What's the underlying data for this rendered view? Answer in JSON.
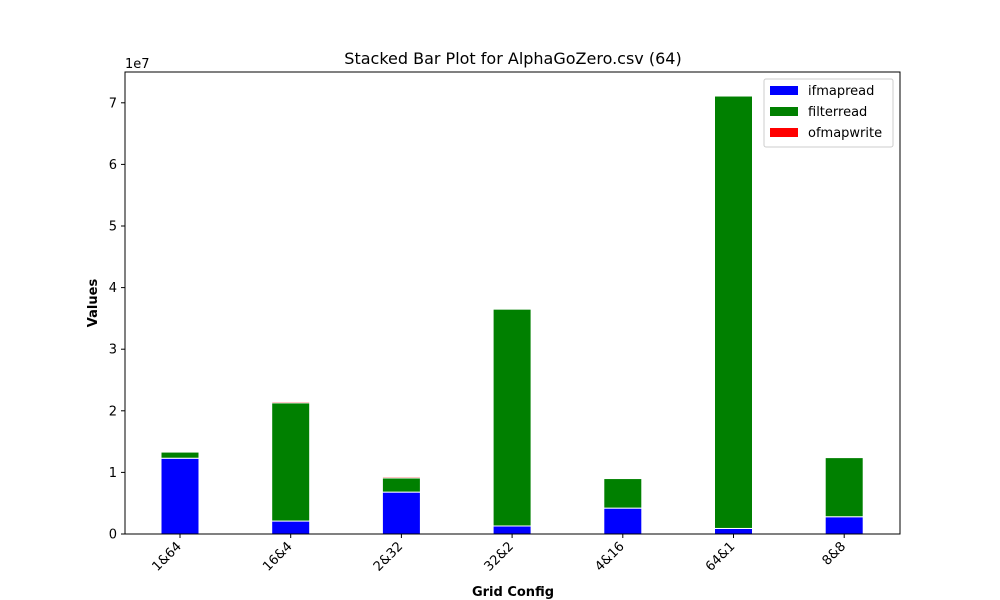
{
  "chart_data": {
    "type": "bar",
    "stacked": true,
    "title": "Stacked Bar Plot for AlphaGoZero.csv (64)",
    "xlabel": "Grid Config",
    "ylabel": "Values",
    "y_scale_label": "1e7",
    "y_tick_labels": [
      "0",
      "1",
      "2",
      "3",
      "4",
      "5",
      "6",
      "7"
    ],
    "ylim": [
      0,
      75000000
    ],
    "categories": [
      "1&64",
      "16&4",
      "2&32",
      "32&2",
      "4&16",
      "64&1",
      "8&8"
    ],
    "series": [
      {
        "name": "ifmapread",
        "color": "#0000ff",
        "values": [
          12300000,
          2100000,
          6800000,
          1300000,
          4200000,
          900000,
          2800000
        ]
      },
      {
        "name": "filterread",
        "color": "#008000",
        "values": [
          1000000,
          19200000,
          2300000,
          35200000,
          4800000,
          70200000,
          9600000
        ]
      },
      {
        "name": "ofmapwrite",
        "color": "#ff0000",
        "values": [
          0,
          200000,
          200000,
          0,
          0,
          0,
          0
        ]
      }
    ],
    "legend_position": "top-right",
    "grid": false
  }
}
